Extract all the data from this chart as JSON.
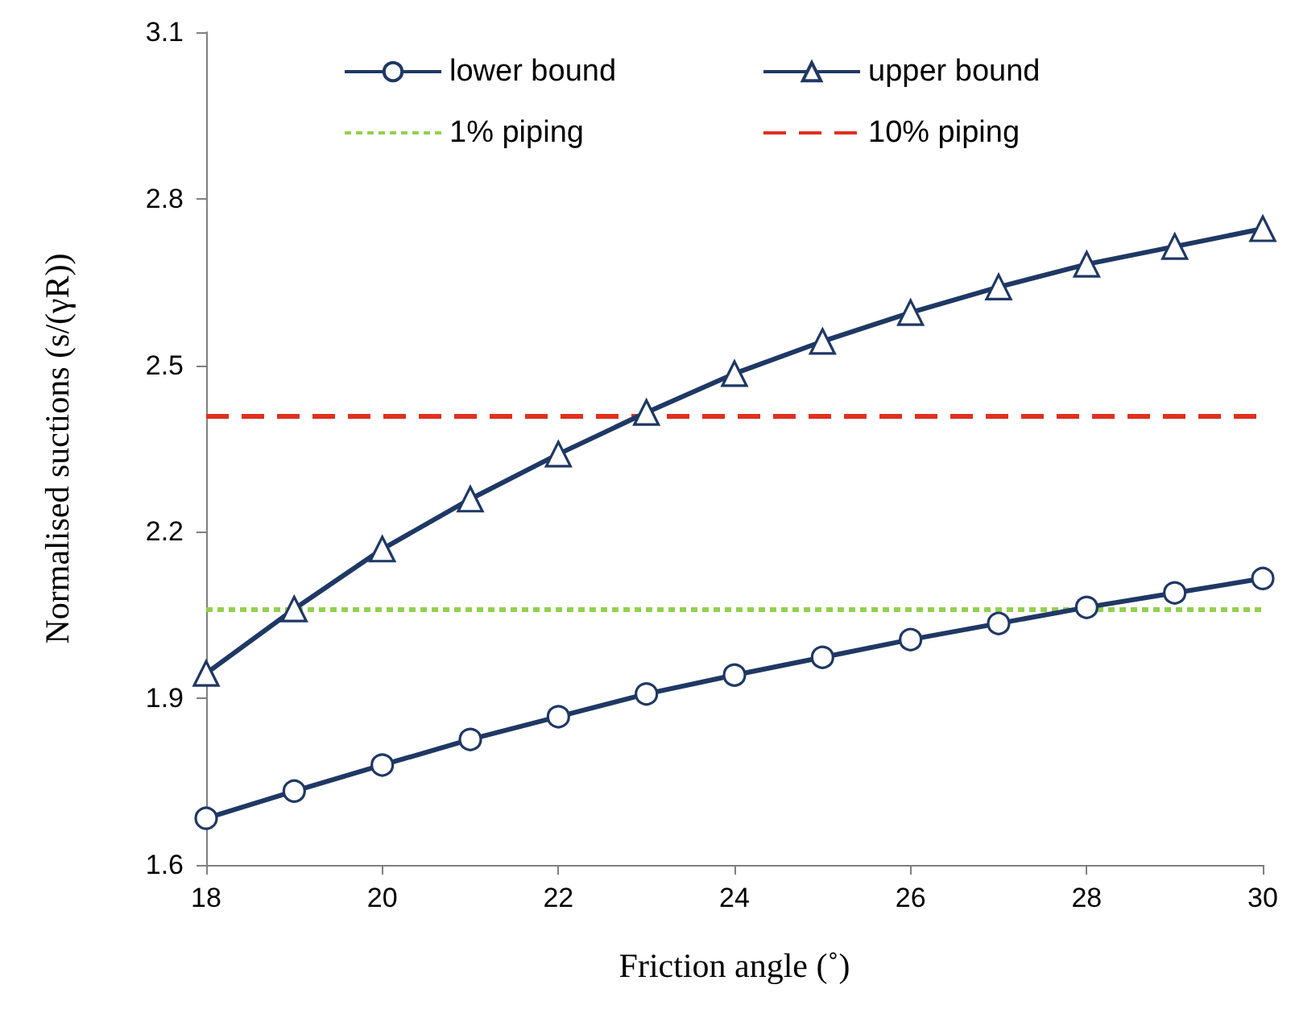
{
  "chart_data": {
    "type": "line",
    "xlabel": "Friction angle (˚)",
    "ylabel": "Normalised suctions (s/(γR))",
    "x": [
      18,
      19,
      20,
      21,
      22,
      23,
      24,
      25,
      26,
      27,
      28,
      29,
      30
    ],
    "series": [
      {
        "name": "lower bound",
        "color": "#1f3864",
        "marker": "circle",
        "line_style": "solid",
        "values": [
          1.684,
          1.733,
          1.78,
          1.826,
          1.867,
          1.908,
          1.942,
          1.974,
          2.006,
          2.035,
          2.064,
          2.09,
          2.116
        ]
      },
      {
        "name": "upper bound",
        "color": "#1f3864",
        "marker": "triangle",
        "line_style": "solid",
        "values": [
          1.945,
          2.061,
          2.169,
          2.259,
          2.34,
          2.415,
          2.485,
          2.543,
          2.595,
          2.641,
          2.682,
          2.714,
          2.746
        ]
      }
    ],
    "ref_lines": [
      {
        "axis": "y",
        "value": 2.058,
        "label": "1% piping",
        "color": "#92d050",
        "line_style": "dotted"
      },
      {
        "axis": "y",
        "value": 2.412,
        "label": "10% piping",
        "color": "#e0301e",
        "line_style": "dashed"
      }
    ],
    "xlim": [
      18,
      30
    ],
    "xticks": [
      18,
      20,
      22,
      24,
      26,
      28,
      30
    ],
    "ylim": [
      1.6,
      3.1
    ],
    "yticks": [
      1.6,
      1.9,
      2.2,
      2.5,
      2.8,
      3.1
    ],
    "grid": false,
    "legend": "top"
  }
}
